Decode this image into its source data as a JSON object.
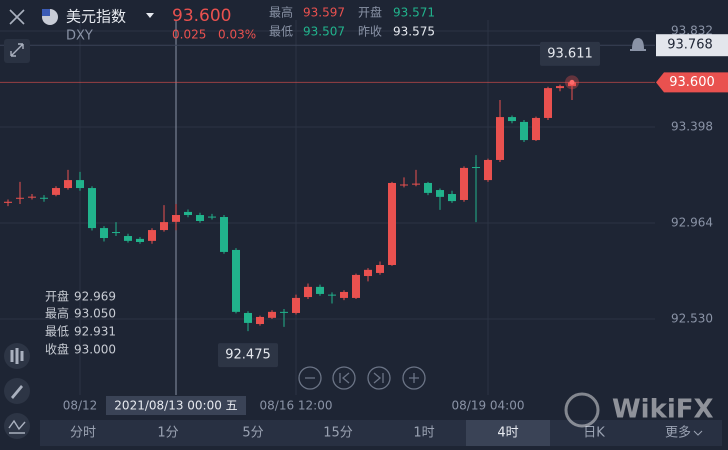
{
  "header": {
    "name": "美元指数",
    "symbol": "DXY",
    "price": "93.600",
    "change": "0.025",
    "change_pct": "0.03%",
    "stats": [
      {
        "label": "最高",
        "value": "93.597"
      },
      {
        "label": "开盘",
        "value": "93.571"
      },
      {
        "label": "最低",
        "value": "93.507"
      },
      {
        "label": "昨收",
        "value": "93.575"
      }
    ]
  },
  "crosshair_info": [
    {
      "label": "开盘",
      "value": "92.969"
    },
    {
      "label": "最高",
      "value": "93.050"
    },
    {
      "label": "最低",
      "value": "92.931"
    },
    {
      "label": "收盘",
      "value": "93.000"
    }
  ],
  "tabs": [
    "分时",
    "1分",
    "5分",
    "15分",
    "1时",
    "4时",
    "日K",
    "更多"
  ],
  "watermark": "WikiFX",
  "chart_data": {
    "type": "candlestick",
    "up_color": "#e9514f",
    "down_color": "#21b38c",
    "categories": [
      null,
      null,
      null,
      null,
      null,
      null,
      "08/12",
      null,
      null,
      null,
      null,
      null,
      null,
      null,
      "2021/08/13 00:00 五",
      null,
      null,
      null,
      null,
      null,
      null,
      null,
      null,
      null,
      "08/16 12:00",
      null,
      null,
      null,
      null,
      null,
      null,
      null,
      null,
      null,
      null,
      null,
      null,
      null,
      null,
      null,
      "08/19 04:00",
      null,
      null,
      null,
      null,
      null,
      null,
      null
    ],
    "open": [
      93.055,
      93.075,
      93.08,
      93.078,
      93.091,
      93.122,
      93.158,
      93.122,
      92.941,
      92.923,
      92.905,
      92.892,
      92.883,
      92.932,
      92.969,
      93.014,
      93.0,
      92.993,
      92.991,
      92.842,
      92.557,
      92.507,
      92.535,
      92.562,
      92.557,
      92.629,
      92.675,
      92.64,
      92.625,
      92.625,
      92.724,
      92.738,
      92.774,
      93.136,
      93.14,
      93.145,
      93.113,
      93.095,
      93.068,
      93.217,
      93.158,
      93.249,
      93.443,
      93.421,
      93.339,
      93.439,
      93.574,
      93.583
    ],
    "high": [
      93.07,
      93.15,
      93.095,
      93.09,
      93.13,
      93.204,
      93.195,
      93.13,
      92.95,
      92.968,
      92.915,
      92.9,
      92.94,
      93.045,
      93.05,
      93.025,
      93.01,
      93.005,
      93.0,
      92.85,
      92.565,
      92.545,
      92.57,
      92.575,
      92.64,
      92.69,
      92.685,
      92.65,
      92.66,
      92.735,
      92.76,
      92.79,
      93.15,
      93.17,
      93.204,
      93.15,
      93.12,
      93.11,
      93.22,
      93.271,
      93.255,
      93.52,
      93.45,
      93.43,
      93.445,
      93.58,
      93.59,
      93.611
    ],
    "low": [
      93.04,
      93.05,
      93.07,
      93.06,
      93.085,
      93.115,
      93.11,
      92.93,
      92.88,
      92.905,
      92.875,
      92.87,
      92.87,
      92.925,
      92.931,
      92.99,
      92.965,
      92.98,
      92.825,
      92.555,
      92.475,
      92.5,
      92.53,
      92.494,
      92.55,
      92.62,
      92.635,
      92.6,
      92.615,
      92.62,
      92.7,
      92.73,
      92.77,
      93.125,
      93.13,
      93.09,
      93.023,
      93.055,
      93.06,
      92.968,
      93.15,
      93.24,
      93.415,
      93.33,
      93.335,
      93.43,
      93.56,
      93.52
    ],
    "close": [
      93.06,
      93.078,
      93.083,
      93.076,
      93.122,
      93.158,
      93.122,
      92.941,
      92.896,
      92.92,
      92.883,
      92.878,
      92.932,
      92.968,
      93.0,
      93.0,
      92.973,
      92.99,
      92.833,
      92.562,
      92.512,
      92.539,
      92.562,
      92.56,
      92.625,
      92.675,
      92.643,
      92.638,
      92.652,
      92.729,
      92.752,
      92.774,
      93.145,
      93.138,
      93.142,
      93.1,
      93.082,
      93.063,
      93.213,
      93.215,
      93.249,
      93.443,
      93.425,
      93.339,
      93.439,
      93.574,
      93.583,
      93.6
    ],
    "ylim": [
      92.186,
      93.882
    ],
    "yticks": [
      93.832,
      93.398,
      92.964,
      {
        "value": 92.53,
        "label": "92.530"
      }
    ],
    "last_price": {
      "value": 93.6,
      "label": "93.600"
    },
    "alert_price": 93.768,
    "max_label": 93.611,
    "min_label": 92.475
  }
}
